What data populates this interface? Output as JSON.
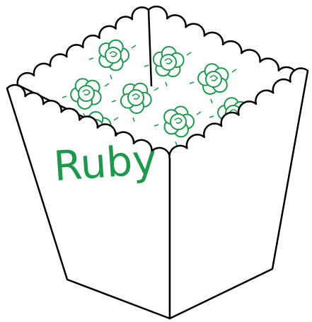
{
  "label": "Ruby"
}
